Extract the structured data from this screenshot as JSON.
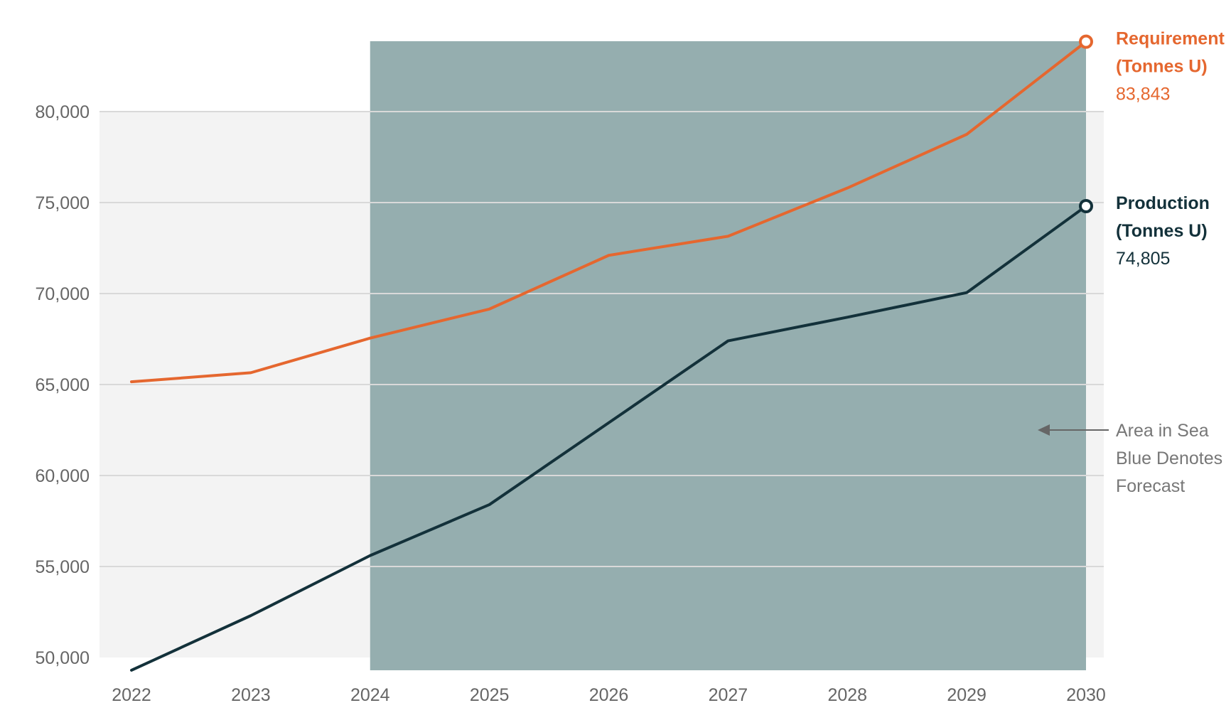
{
  "chart_data": {
    "type": "line",
    "x": [
      2022,
      2023,
      2024,
      2025,
      2026,
      2027,
      2028,
      2029,
      2030
    ],
    "x_tick_labels": [
      "2022",
      "2023",
      "2024",
      "2025",
      "2026",
      "2027",
      "2028",
      "2029",
      "2030"
    ],
    "y_tick_values": [
      50000,
      55000,
      60000,
      65000,
      70000,
      75000,
      80000
    ],
    "y_tick_labels": [
      "50,000",
      "55,000",
      "60,000",
      "65,000",
      "70,000",
      "75,000",
      "80,000"
    ],
    "ylim": [
      50000,
      80000
    ],
    "grid": true,
    "forecast_region": {
      "from": 2024,
      "to": 2030,
      "color": "#95aeaf"
    },
    "series": [
      {
        "key": "requirement",
        "name_line1": "Requirement",
        "name_line2": "(Tonnes U)",
        "end_value_label": "83,843",
        "color": "#e5672f",
        "values": [
          65150,
          65650,
          67550,
          69150,
          72100,
          73150,
          75800,
          78750,
          83843
        ]
      },
      {
        "key": "production",
        "name_line1": "Production",
        "name_line2": "(Tonnes U)",
        "end_value_label": "74,805",
        "color": "#13313a",
        "values": [
          49300,
          52300,
          55600,
          58400,
          62900,
          67400,
          68700,
          70050,
          74805
        ]
      }
    ],
    "annotation": {
      "lines": [
        "Area in Sea",
        "Blue Denotes",
        "Forecast"
      ],
      "color": "#777777"
    }
  }
}
